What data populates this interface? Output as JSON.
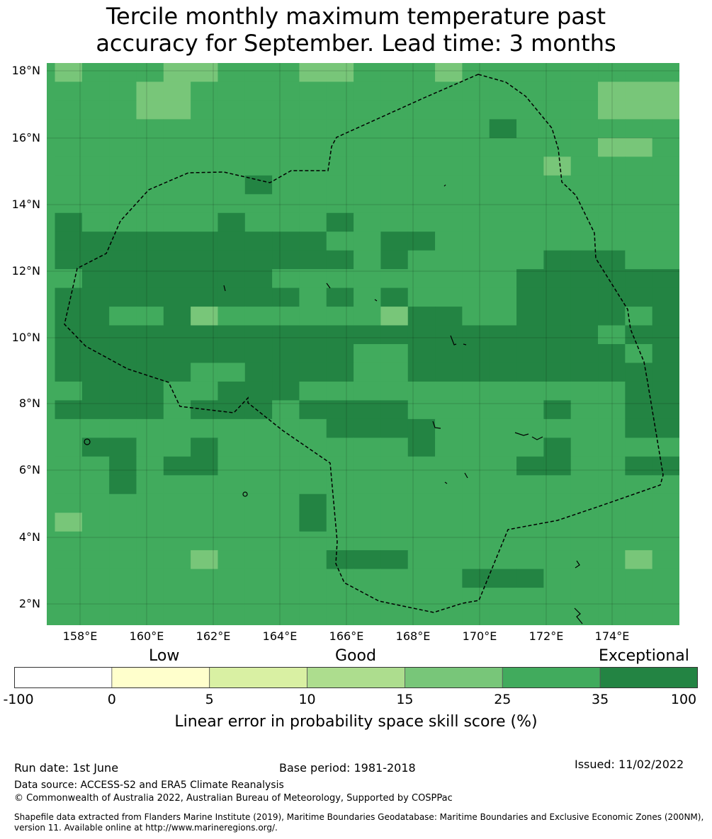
{
  "title": {
    "line1": "Tercile monthly maximum temperature past",
    "line2": "accuracy for September. Lead time: 3 months"
  },
  "map": {
    "lat_labels": [
      "18°N",
      "16°N",
      "14°N",
      "12°N",
      "10°N",
      "8°N",
      "6°N",
      "4°N",
      "2°N"
    ],
    "lon_labels": [
      "158°E",
      "160°E",
      "162°E",
      "164°E",
      "166°E",
      "168°E",
      "170°E",
      "172°E",
      "174°E"
    ],
    "cell_colors": {
      "low_0_5": "#ffffcc",
      "good_5_10": "#d9f0a3",
      "good_10_15": "#addd8e",
      "good_15_25": "#78c679",
      "exc_25_35": "#41ab5d",
      "exc_35_100": "#238443"
    },
    "boundary_color": "#000000"
  },
  "colorbar": {
    "categories": {
      "low": "Low",
      "good": "Good",
      "exceptional": "Exceptional"
    },
    "ticks": [
      "-100",
      "0",
      "5",
      "10",
      "15",
      "25",
      "35",
      "100"
    ],
    "colors": [
      "#ffffff",
      "#ffffcc",
      "#d9f0a3",
      "#addd8e",
      "#78c679",
      "#41ab5d",
      "#238443"
    ],
    "title": "Linear error in probability space skill score (%)"
  },
  "footer": {
    "run_date": "Run date: 1st June",
    "base_period": "Base period: 1981-2018",
    "issued": "Issued: 11/02/2022",
    "data_source": "Data source: ACCESS-S2 and ERA5 Climate Reanalysis",
    "copyright": "© Commonwealth of Australia 2022, Australian Bureau of Meteorology, Supported by COSPPac",
    "shapefile_line1": "Shapefile data extracted from Flanders Marine Institute (2019), Maritime Boundaries Geodatabase: Maritime Boundaries and Exclusive Economic Zones (200NM),",
    "shapefile_line2": "version 11. Available online at http://www.marineregions.org/."
  }
}
